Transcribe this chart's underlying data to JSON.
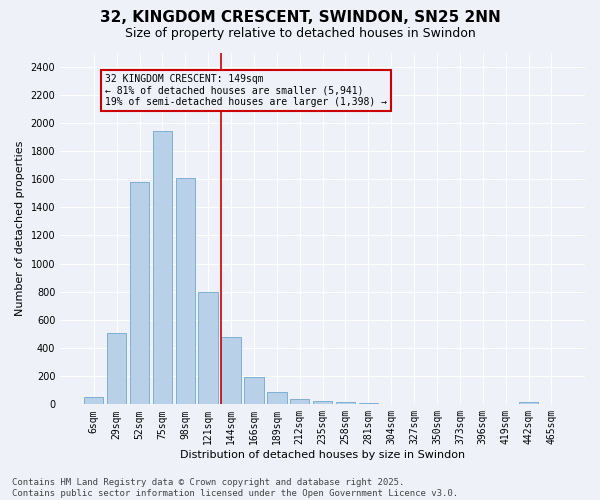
{
  "title1": "32, KINGDOM CRESCENT, SWINDON, SN25 2NN",
  "title2": "Size of property relative to detached houses in Swindon",
  "xlabel": "Distribution of detached houses by size in Swindon",
  "ylabel": "Number of detached properties",
  "footnote": "Contains HM Land Registry data © Crown copyright and database right 2025.\nContains public sector information licensed under the Open Government Licence v3.0.",
  "categories": [
    "6sqm",
    "29sqm",
    "52sqm",
    "75sqm",
    "98sqm",
    "121sqm",
    "144sqm",
    "166sqm",
    "189sqm",
    "212sqm",
    "235sqm",
    "258sqm",
    "281sqm",
    "304sqm",
    "327sqm",
    "350sqm",
    "373sqm",
    "396sqm",
    "419sqm",
    "442sqm",
    "465sqm"
  ],
  "values": [
    55,
    510,
    1580,
    1940,
    1610,
    800,
    480,
    195,
    88,
    38,
    22,
    14,
    8,
    5,
    3,
    2,
    1,
    0,
    0,
    20,
    0
  ],
  "bar_color": "#b8d0e8",
  "bar_edge_color": "#6fa8d0",
  "vline_color": "#cc0000",
  "vline_pos": 6.0,
  "annotation_text": "32 KINGDOM CRESCENT: 149sqm\n← 81% of detached houses are smaller (5,941)\n19% of semi-detached houses are larger (1,398) →",
  "box_color": "#cc0000",
  "ylim": [
    0,
    2500
  ],
  "yticks": [
    0,
    200,
    400,
    600,
    800,
    1000,
    1200,
    1400,
    1600,
    1800,
    2000,
    2200,
    2400
  ],
  "background_color": "#eef2f8",
  "grid_color": "#ffffff",
  "title_fontsize": 11,
  "subtitle_fontsize": 9,
  "axis_fontsize": 8,
  "tick_fontsize": 7,
  "footnote_fontsize": 6.5
}
